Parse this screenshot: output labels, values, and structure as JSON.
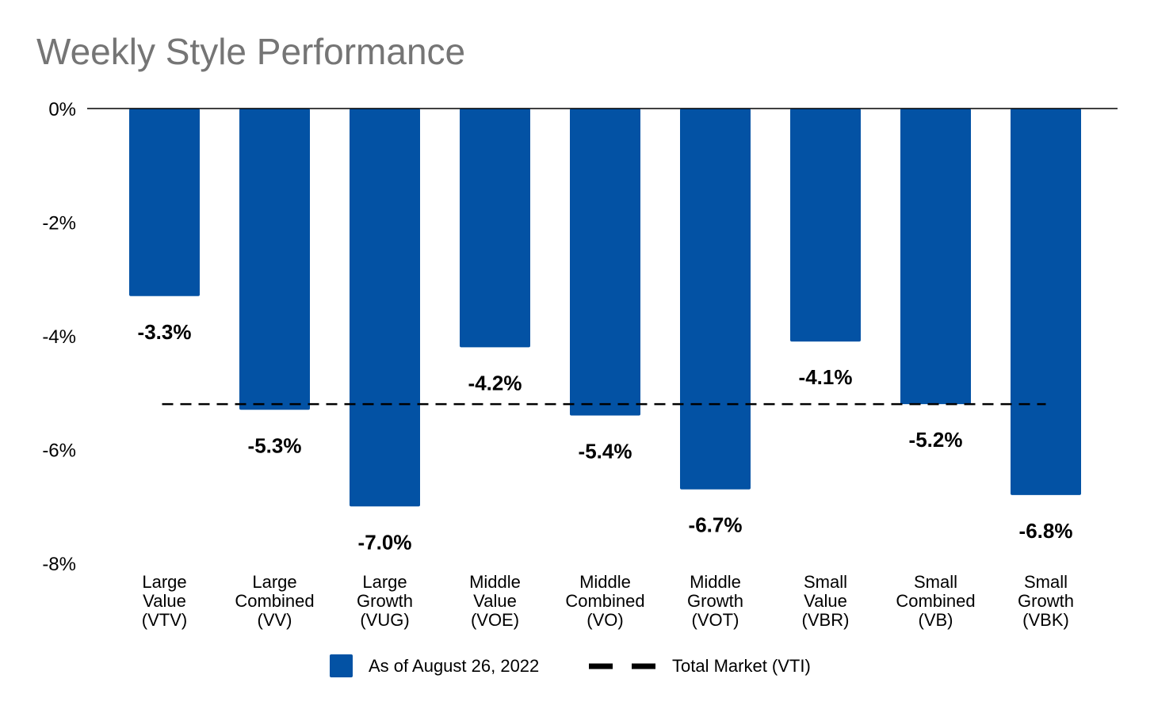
{
  "chart_data": {
    "type": "bar",
    "title": "Weekly Style Performance",
    "categories": [
      [
        "Large",
        "Value",
        "(VTV)"
      ],
      [
        "Large",
        "Combined",
        "(VV)"
      ],
      [
        "Large",
        "Growth",
        "(VUG)"
      ],
      [
        "Middle",
        "Value",
        "(VOE)"
      ],
      [
        "Middle",
        "Combined",
        "(VO)"
      ],
      [
        "Middle",
        "Growth",
        "(VOT)"
      ],
      [
        "Small",
        "Value",
        "(VBR)"
      ],
      [
        "Small",
        "Combined",
        "(VB)"
      ],
      [
        "Small",
        "Growth",
        "(VBK)"
      ]
    ],
    "series": [
      {
        "name": "As of August 26, 2022",
        "values": [
          -3.3,
          -5.3,
          -7.0,
          -4.2,
          -5.4,
          -6.7,
          -4.1,
          -5.2,
          -6.8
        ],
        "labels": [
          "-3.3%",
          "-5.3%",
          "-7.0%",
          "-4.2%",
          "-5.4%",
          "-6.7%",
          "-4.1%",
          "-5.2%",
          "-6.8%"
        ],
        "color": "#0352A4"
      }
    ],
    "reference_line": {
      "name": "Total Market (VTI)",
      "value": -5.2,
      "style": "dashed",
      "color": "#000000"
    },
    "yticks": [
      0,
      -2,
      -4,
      -6,
      -8
    ],
    "ytick_labels": [
      "0%",
      "-2%",
      "-4%",
      "-6%",
      "-8%"
    ],
    "ylim": [
      -8,
      0
    ],
    "xlabel": "",
    "ylabel": "",
    "grid": false,
    "legend_position": "bottom"
  }
}
